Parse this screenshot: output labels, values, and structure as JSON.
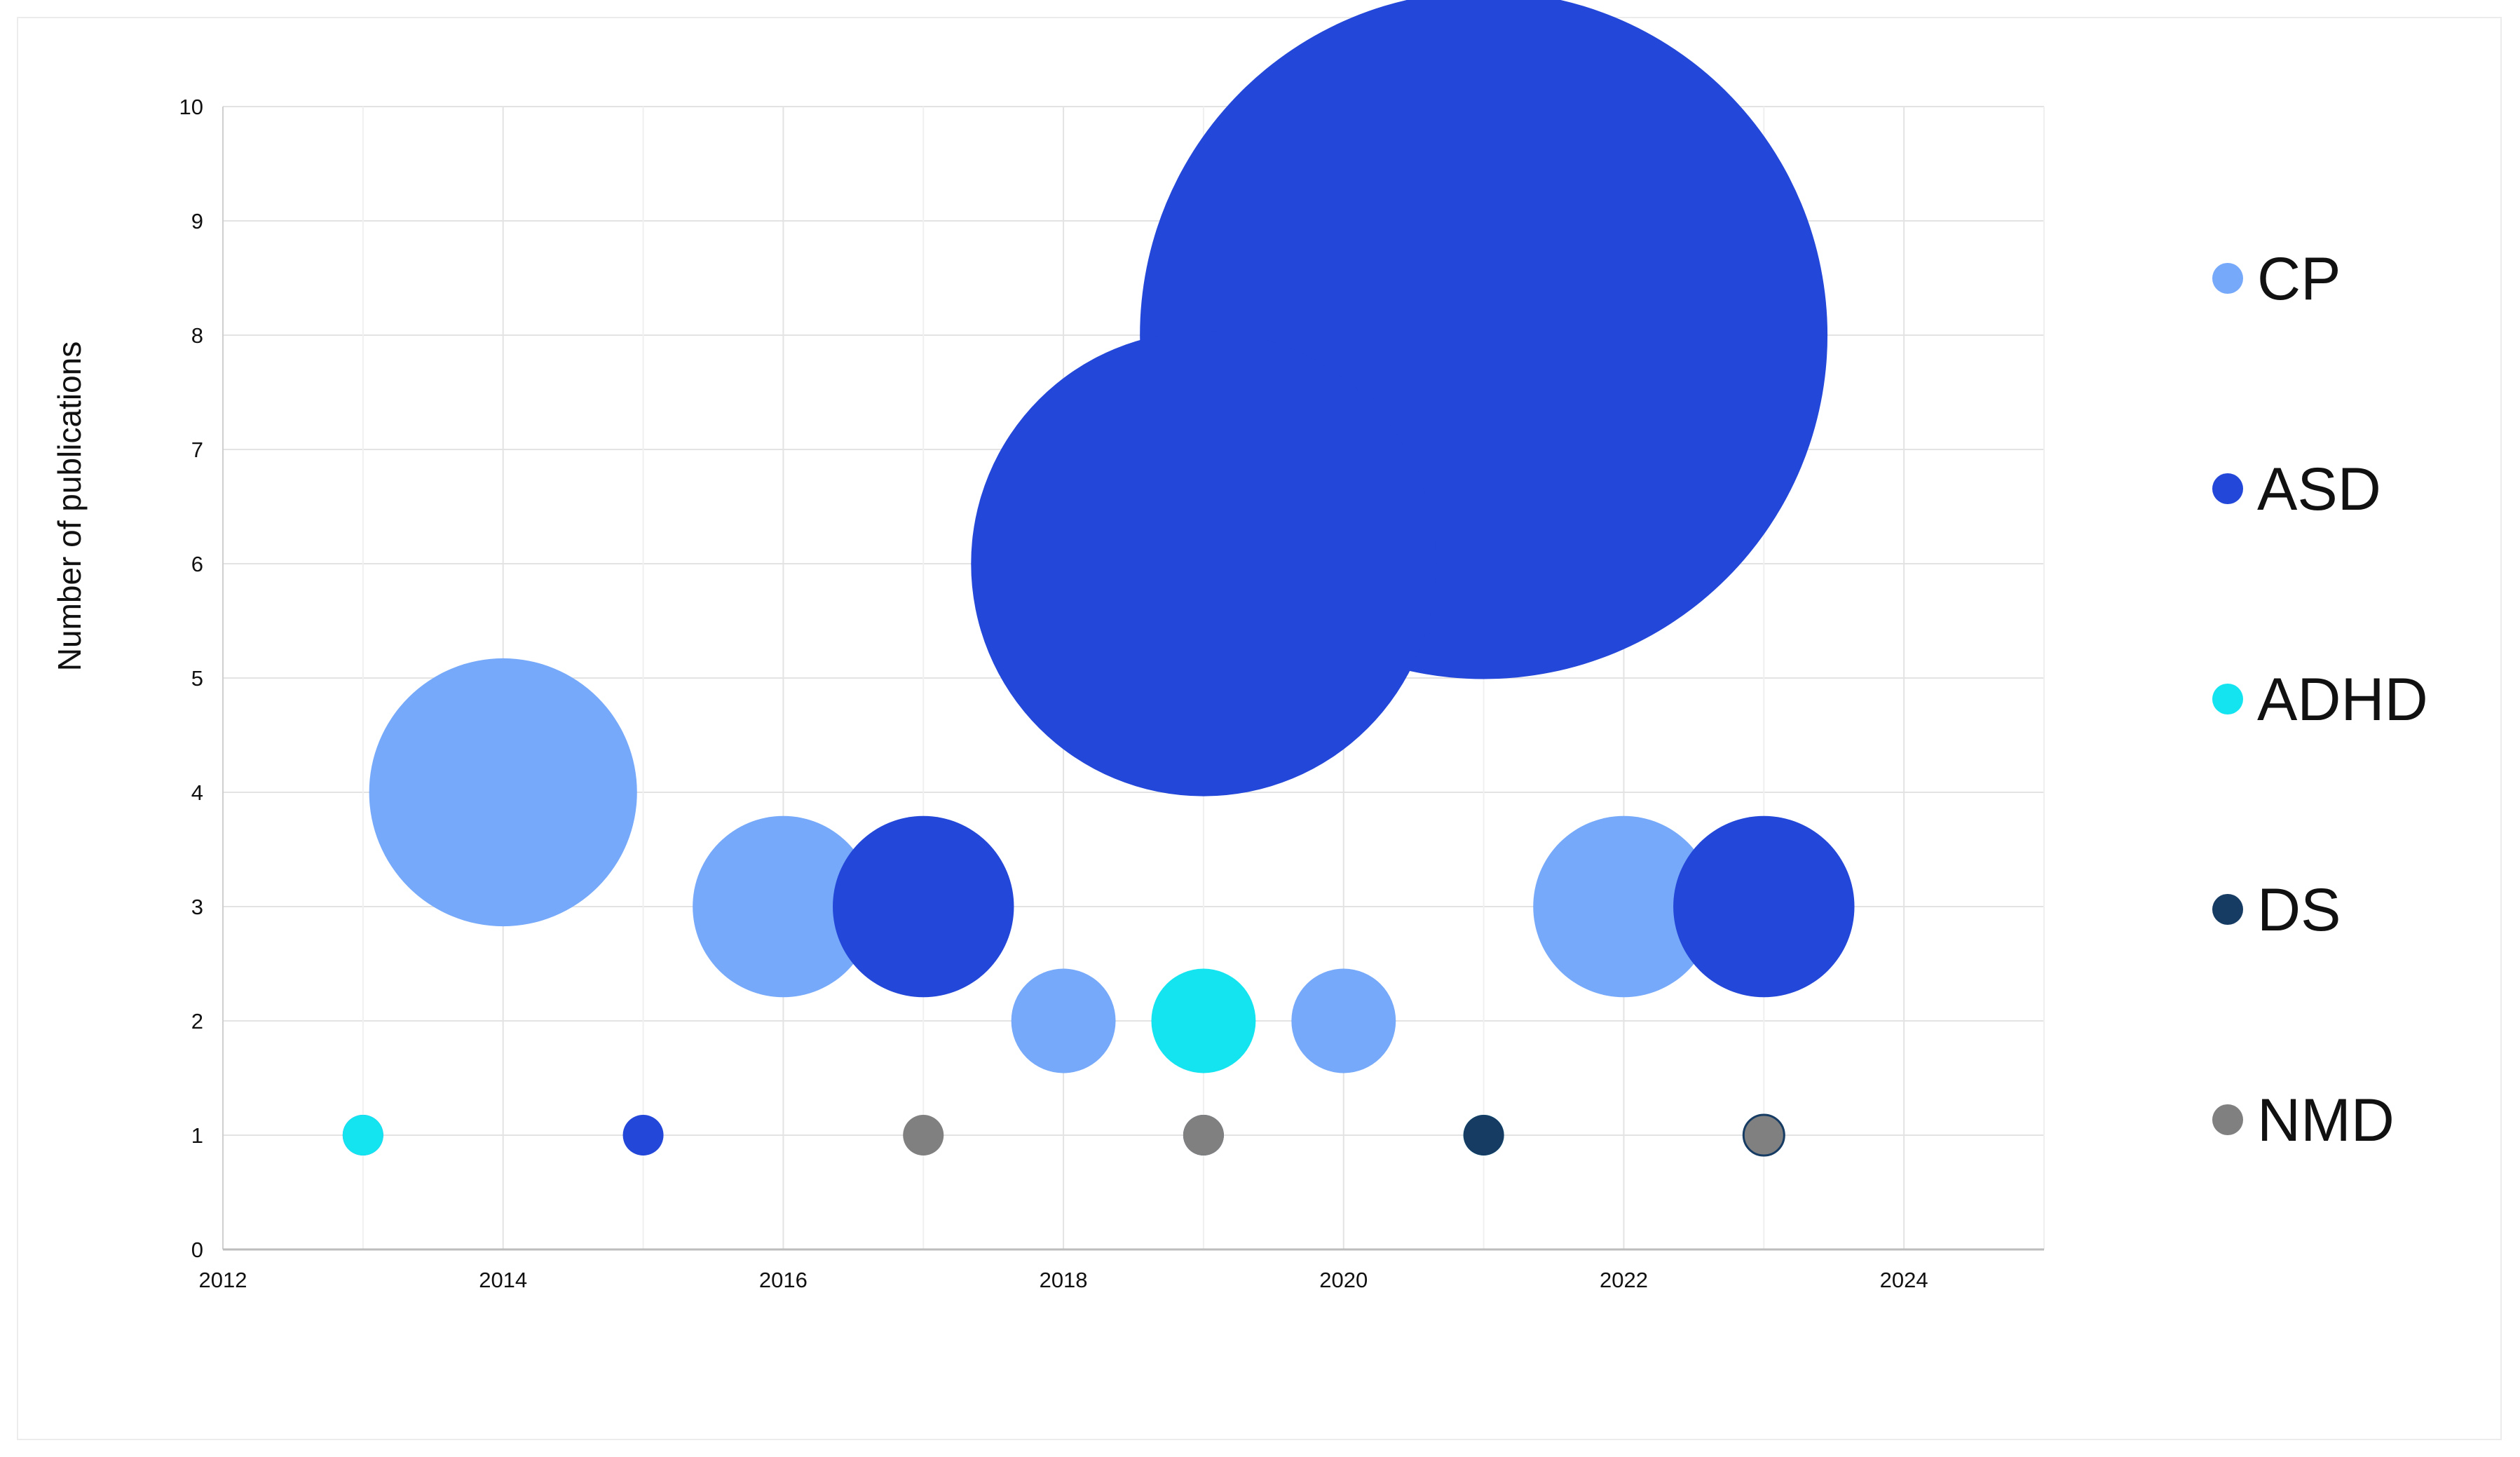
{
  "chart_data": {
    "type": "bubble",
    "title": "",
    "xlabel": "",
    "ylabel": "Number of publications",
    "xlim": [
      2012,
      2025
    ],
    "ylim": [
      0,
      10
    ],
    "x_ticks": [
      "2012",
      "2014",
      "2016",
      "2018",
      "2020",
      "2022",
      "2024"
    ],
    "y_ticks": [
      "0",
      "1",
      "2",
      "3",
      "4",
      "5",
      "6",
      "7",
      "8",
      "9",
      "10"
    ],
    "grid": true,
    "legend_position": "right",
    "series": [
      {
        "name": "CP",
        "color": "#76a9fa",
        "points": [
          {
            "x": 2014,
            "y": 4,
            "size": 4
          },
          {
            "x": 2016,
            "y": 3,
            "size": 3
          },
          {
            "x": 2018,
            "y": 2,
            "size": 2
          },
          {
            "x": 2020,
            "y": 2,
            "size": 2
          },
          {
            "x": 2022,
            "y": 3,
            "size": 3
          }
        ]
      },
      {
        "name": "ASD",
        "color": "#2347d9",
        "points": [
          {
            "x": 2013,
            "y": 1,
            "size": 1
          },
          {
            "x": 2015,
            "y": 1,
            "size": 1
          },
          {
            "x": 2017,
            "y": 3,
            "size": 3
          },
          {
            "x": 2019,
            "y": 6,
            "size": 6
          },
          {
            "x": 2021,
            "y": 8,
            "size": 8
          },
          {
            "x": 2023,
            "y": 3,
            "size": 3
          }
        ]
      },
      {
        "name": "ADHD",
        "color": "#14e4f0",
        "points": [
          {
            "x": 2013,
            "y": 1,
            "size": 1
          },
          {
            "x": 2019,
            "y": 2,
            "size": 2
          },
          {
            "x": 2021,
            "y": 1,
            "size": 1
          }
        ]
      },
      {
        "name": "DS",
        "color": "#173c64",
        "points": [
          {
            "x": 2019,
            "y": 1,
            "size": 1
          },
          {
            "x": 2021,
            "y": 1,
            "size": 1
          }
        ]
      },
      {
        "name": "NMD",
        "color": "#808080",
        "points": [
          {
            "x": 2017,
            "y": 1,
            "size": 1
          },
          {
            "x": 2019,
            "y": 1,
            "size": 1
          },
          {
            "x": 2023,
            "y": 1,
            "size": 1
          }
        ]
      }
    ]
  }
}
